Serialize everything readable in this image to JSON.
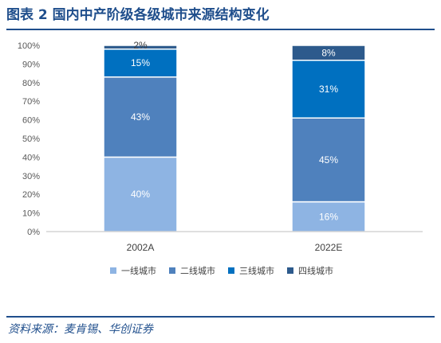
{
  "title": "图表 2 国内中产阶级各级城市来源结构变化",
  "source": "资料来源：麦肯锡、华创证券",
  "chart_data": {
    "type": "bar",
    "stacked": true,
    "categories": [
      "2002A",
      "2022E"
    ],
    "series": [
      {
        "name": "一线城市",
        "values": [
          40,
          16
        ],
        "color": "#8eb4e3",
        "label_color": "#ffffff"
      },
      {
        "name": "二线城市",
        "values": [
          43,
          45
        ],
        "color": "#4f81bd",
        "label_color": "#ffffff"
      },
      {
        "name": "三线城市",
        "values": [
          15,
          31
        ],
        "color": "#0070c0",
        "label_color": "#ffffff"
      },
      {
        "name": "四线城市",
        "values": [
          2,
          8
        ],
        "color": "#2d5a8c",
        "label_color": "#ffffff"
      }
    ],
    "data_labels": [
      [
        "40%",
        "43%",
        "15%",
        "2%"
      ],
      [
        "16%",
        "45%",
        "31%",
        "8%"
      ]
    ],
    "y_ticks": [
      "0%",
      "10%",
      "20%",
      "30%",
      "40%",
      "50%",
      "60%",
      "70%",
      "80%",
      "90%",
      "100%"
    ],
    "ylim": [
      0,
      100
    ],
    "grid": false,
    "legend_position": "bottom"
  }
}
